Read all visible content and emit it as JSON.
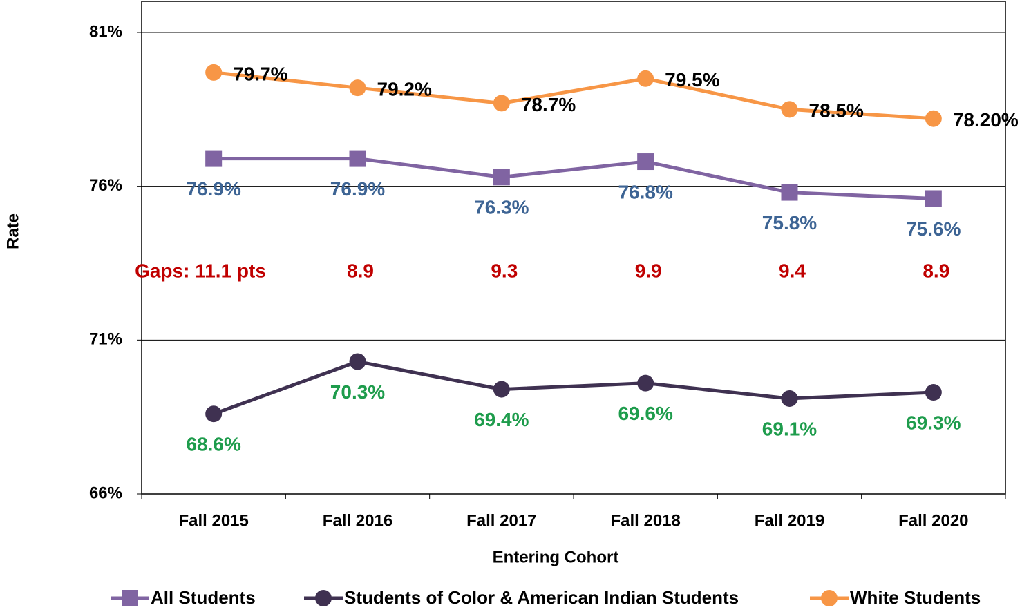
{
  "chart_data": {
    "type": "line",
    "x_label": "Entering Cohort",
    "y_label": "Rate",
    "categories": [
      "Fall 2015",
      "Fall 2016",
      "Fall 2017",
      "Fall 2018",
      "Fall 2019",
      "Fall 2020"
    ],
    "series": [
      {
        "name": "All Students",
        "color": "#8064a2",
        "marker": "square",
        "label_color": "#3d6494",
        "values": [
          76.9,
          76.9,
          76.3,
          76.8,
          75.8,
          75.6
        ],
        "value_labels": [
          "76.9%",
          "76.9%",
          "76.3%",
          "76.8%",
          "75.8%",
          "75.6%"
        ]
      },
      {
        "name": "Students of Color & American Indian Students",
        "color": "#3f3151",
        "marker": "circle",
        "label_color": "#1e9c4c",
        "values": [
          68.6,
          70.3,
          69.4,
          69.6,
          69.1,
          69.3
        ],
        "value_labels": [
          "68.6%",
          "70.3%",
          "69.4%",
          "69.6%",
          "69.1%",
          "69.3%"
        ]
      },
      {
        "name": "White Students",
        "color": "#f79646",
        "marker": "circle",
        "label_color": "#000000",
        "values": [
          79.7,
          79.2,
          78.7,
          79.5,
          78.5,
          78.2
        ],
        "value_labels": [
          "79.7%",
          "79.2%",
          "78.7%",
          "79.5%",
          "78.5%",
          "78.20%"
        ]
      }
    ],
    "annotations": {
      "color": "#c00000",
      "texts": [
        "Gaps:  11.1 pts",
        "8.9",
        "9.3",
        "9.9",
        "9.4",
        "8.9"
      ]
    },
    "ylim": [
      66,
      81
    ],
    "yticks": [
      {
        "value": 66,
        "label": "66%"
      },
      {
        "value": 71,
        "label": "71%"
      },
      {
        "value": 76,
        "label": "76%"
      },
      {
        "value": 81,
        "label": "81%"
      }
    ],
    "grid": true,
    "legend": "bottom"
  }
}
